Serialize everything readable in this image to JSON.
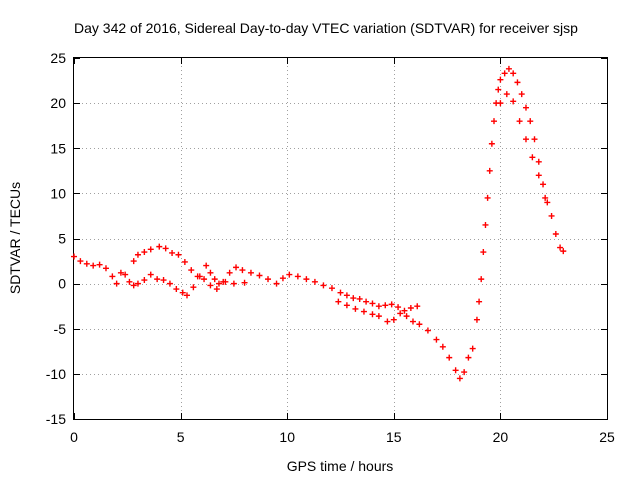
{
  "chart_data": {
    "type": "scatter",
    "title": "Day 342 of 2016, Sidereal Day-to-day VTEC variation (SDTVAR) for receiver sjsp",
    "xlabel": "GPS time / hours",
    "ylabel": "SDTVAR / TECUs",
    "xlim": [
      0,
      25
    ],
    "ylim": [
      -15,
      25
    ],
    "xticks": [
      0,
      5,
      10,
      15,
      20,
      25
    ],
    "yticks": [
      -15,
      -10,
      -5,
      0,
      5,
      10,
      15,
      20,
      25
    ],
    "xtick_labels": [
      "0",
      "5",
      "10",
      "15",
      "20",
      "25"
    ],
    "ytick_labels": [
      "-15",
      "-10",
      "-5",
      "0",
      "5",
      "10",
      "15",
      "20",
      "25"
    ],
    "grid": true,
    "marker": "+",
    "color": "#ff0000",
    "series": [
      {
        "name": "SDTVAR",
        "points": [
          [
            0.0,
            3.0
          ],
          [
            0.3,
            2.5
          ],
          [
            0.6,
            2.2
          ],
          [
            0.9,
            2.0
          ],
          [
            1.2,
            2.1
          ],
          [
            1.5,
            1.7
          ],
          [
            1.8,
            0.8
          ],
          [
            2.0,
            0.0
          ],
          [
            2.2,
            1.2
          ],
          [
            2.4,
            1.0
          ],
          [
            2.6,
            0.2
          ],
          [
            2.8,
            -0.2
          ],
          [
            3.0,
            0.0
          ],
          [
            3.3,
            0.4
          ],
          [
            3.6,
            1.0
          ],
          [
            3.9,
            0.5
          ],
          [
            4.2,
            0.4
          ],
          [
            4.5,
            0.0
          ],
          [
            4.8,
            -0.6
          ],
          [
            5.1,
            -1.0
          ],
          [
            5.3,
            -1.3
          ],
          [
            5.6,
            -0.4
          ],
          [
            5.9,
            0.8
          ],
          [
            6.2,
            2.0
          ],
          [
            6.4,
            1.2
          ],
          [
            6.6,
            0.5
          ],
          [
            6.8,
            0.0
          ],
          [
            7.1,
            0.2
          ],
          [
            7.5,
            0.0
          ],
          [
            8.0,
            0.1
          ],
          [
            2.8,
            2.5
          ],
          [
            3.0,
            3.2
          ],
          [
            3.3,
            3.5
          ],
          [
            3.6,
            3.8
          ],
          [
            4.0,
            4.1
          ],
          [
            4.3,
            3.9
          ],
          [
            4.6,
            3.4
          ],
          [
            4.9,
            3.2
          ],
          [
            5.2,
            2.4
          ],
          [
            5.5,
            1.5
          ],
          [
            5.8,
            0.8
          ],
          [
            6.1,
            0.5
          ],
          [
            6.4,
            -0.2
          ],
          [
            6.7,
            -0.6
          ],
          [
            7.0,
            0.2
          ],
          [
            7.3,
            1.2
          ],
          [
            7.6,
            1.8
          ],
          [
            7.9,
            1.5
          ],
          [
            8.3,
            1.2
          ],
          [
            8.7,
            0.9
          ],
          [
            9.1,
            0.5
          ],
          [
            9.5,
            0.0
          ],
          [
            9.8,
            0.6
          ],
          [
            10.1,
            1.0
          ],
          [
            10.5,
            0.8
          ],
          [
            10.9,
            0.5
          ],
          [
            11.3,
            0.2
          ],
          [
            11.7,
            -0.2
          ],
          [
            12.1,
            -0.5
          ],
          [
            12.5,
            -1.0
          ],
          [
            12.8,
            -1.3
          ],
          [
            13.1,
            -1.6
          ],
          [
            13.4,
            -1.7
          ],
          [
            13.7,
            -2.0
          ],
          [
            14.0,
            -2.2
          ],
          [
            14.3,
            -2.5
          ],
          [
            14.6,
            -2.4
          ],
          [
            14.9,
            -2.3
          ],
          [
            15.2,
            -2.6
          ],
          [
            15.5,
            -3.0
          ],
          [
            15.8,
            -2.7
          ],
          [
            16.1,
            -2.5
          ],
          [
            12.4,
            -2.0
          ],
          [
            12.8,
            -2.4
          ],
          [
            13.2,
            -2.8
          ],
          [
            13.6,
            -3.1
          ],
          [
            14.0,
            -3.4
          ],
          [
            14.3,
            -3.6
          ],
          [
            14.7,
            -4.2
          ],
          [
            15.0,
            -4.0
          ],
          [
            15.3,
            -3.3
          ],
          [
            15.6,
            -3.6
          ],
          [
            15.9,
            -4.2
          ],
          [
            16.2,
            -4.5
          ],
          [
            16.6,
            -5.2
          ],
          [
            17.0,
            -6.2
          ],
          [
            17.3,
            -7.0
          ],
          [
            17.6,
            -8.2
          ],
          [
            17.9,
            -9.6
          ],
          [
            18.1,
            -10.5
          ],
          [
            18.3,
            -9.8
          ],
          [
            18.5,
            -8.2
          ],
          [
            18.7,
            -7.2
          ],
          [
            18.9,
            -4.0
          ],
          [
            19.0,
            -2.0
          ],
          [
            19.1,
            0.5
          ],
          [
            19.2,
            3.5
          ],
          [
            19.3,
            6.5
          ],
          [
            19.4,
            9.5
          ],
          [
            19.5,
            12.5
          ],
          [
            19.6,
            15.5
          ],
          [
            19.7,
            18.0
          ],
          [
            19.8,
            20.0
          ],
          [
            19.9,
            21.5
          ],
          [
            20.0,
            22.6
          ],
          [
            20.2,
            23.3
          ],
          [
            20.4,
            23.8
          ],
          [
            20.6,
            23.3
          ],
          [
            20.8,
            22.3
          ],
          [
            21.0,
            21.0
          ],
          [
            21.2,
            19.5
          ],
          [
            21.4,
            18.0
          ],
          [
            21.6,
            16.0
          ],
          [
            21.8,
            13.5
          ],
          [
            22.0,
            11.0
          ],
          [
            22.2,
            9.0
          ],
          [
            22.4,
            7.5
          ],
          [
            22.6,
            5.5
          ],
          [
            22.8,
            4.0
          ],
          [
            22.95,
            3.6
          ],
          [
            20.0,
            20.0
          ],
          [
            20.3,
            21.0
          ],
          [
            20.6,
            20.2
          ],
          [
            20.9,
            18.0
          ],
          [
            21.2,
            16.0
          ],
          [
            21.5,
            14.0
          ],
          [
            21.8,
            12.0
          ],
          [
            22.1,
            9.5
          ]
        ]
      }
    ]
  }
}
